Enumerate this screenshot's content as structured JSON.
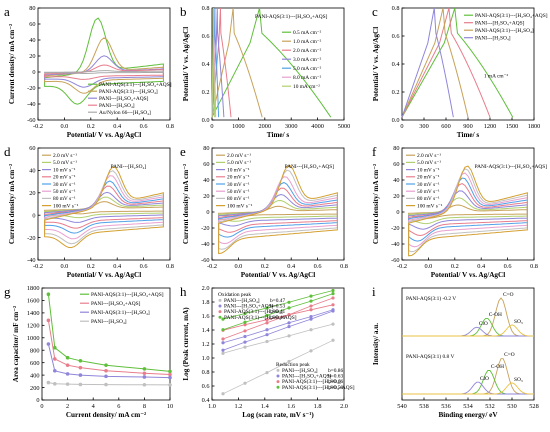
{
  "chart_data": [
    {
      "panel": "a",
      "type": "line",
      "xlabel": "Potential/ V vs. Ag/AgCl",
      "ylabel": "Current density/ mA cm⁻²",
      "xlim": [
        -0.2,
        0.8
      ],
      "ylim": [
        -60,
        80
      ],
      "xticks": [
        "-0.2",
        "0.0",
        "0.2",
        "0.4",
        "0.6",
        "0.8"
      ],
      "yticks": [
        "-60",
        "-40",
        "-20",
        "0",
        "20",
        "40",
        "60",
        "80"
      ],
      "legend_pos": "bottom-right",
      "series": [
        {
          "name": "PANI-AQS(3:1)---[H₂SO₄+AQS]",
          "color": "#5fbf3a",
          "peak_x": 0.25,
          "peak_y": 72,
          "valley_x": 0.1,
          "valley_y": -42,
          "max_a": 10,
          "min_a": -18
        },
        {
          "name": "PANI-AQS(3:1)---[H₂SO₄]",
          "color": "#c8a25a",
          "peak_x": 0.3,
          "peak_y": 45,
          "valley_x": 0.15,
          "valley_y": -28,
          "max_a": 6,
          "min_a": -12
        },
        {
          "name": "PANI---[H₂SO₄+AQS]",
          "color": "#8f86d9",
          "peak_x": 0.3,
          "peak_y": 22,
          "valley_x": 0.15,
          "valley_y": -20,
          "max_a": 4,
          "min_a": -9
        },
        {
          "name": "PANI---[H₂SO₄]",
          "color": "#e87d8c",
          "peak_x": 0.3,
          "peak_y": 10,
          "valley_x": 0.15,
          "valley_y": -10,
          "max_a": 3,
          "min_a": -6
        },
        {
          "name": "Au/Nylon 66---[H₂SO₄]",
          "color": "#aaaaaa",
          "peak_x": 0.3,
          "peak_y": 2,
          "valley_x": 0.15,
          "valley_y": -2,
          "max_a": 1,
          "min_a": -1
        }
      ]
    },
    {
      "panel": "b",
      "type": "line",
      "title": "PANI-AQS(3:1)---[H₂SO₄+AQS]",
      "xlabel": "Time/ s",
      "ylabel": "Potential/ V vs. Ag/AgCl",
      "xlim": [
        0,
        5000
      ],
      "ylim": [
        0,
        0.8
      ],
      "xticks": [
        "0",
        "1000",
        "2000",
        "3000",
        "4000",
        "5000"
      ],
      "yticks": [
        "0.0",
        "0.2",
        "0.4",
        "0.6",
        "0.8"
      ],
      "legend_pos": "right",
      "series": [
        {
          "name": "0.5 mA cm⁻²",
          "color": "#5fbf3a",
          "t_charge": 1800,
          "t_end": 4500
        },
        {
          "name": "1.0 mA cm⁻²",
          "color": "#c8a25a",
          "t_charge": 800,
          "t_end": 1900
        },
        {
          "name": "2.0 mA cm⁻²",
          "color": "#e87d8c",
          "t_charge": 320,
          "t_end": 720
        },
        {
          "name": "3.0 mA cm⁻²",
          "color": "#8f86d9",
          "t_charge": 200,
          "t_end": 450
        },
        {
          "name": "5.0 mA cm⁻²",
          "color": "#4fa0e8",
          "t_charge": 110,
          "t_end": 250
        },
        {
          "name": "8.0 mA cm⁻²",
          "color": "#e8a0d0",
          "t_charge": 60,
          "t_end": 140
        },
        {
          "name": "10 mA cm⁻²",
          "color": "#b0d070",
          "t_charge": 45,
          "t_end": 100
        }
      ]
    },
    {
      "panel": "c",
      "type": "line",
      "annotation": "1 mA cm⁻²",
      "xlabel": "Time/ s",
      "ylabel": "Potential/ V vs. Ag/AgCl",
      "xlim": [
        0,
        1800
      ],
      "ylim": [
        0,
        0.8
      ],
      "xticks": [
        "0",
        "300",
        "600",
        "900",
        "1200",
        "1500",
        "1800"
      ],
      "yticks": [
        "0.0",
        "0.2",
        "0.4",
        "0.6",
        "0.8"
      ],
      "legend_pos": "top-right",
      "series": [
        {
          "name": "PANI-AQS(3:1)---[H₂SO₄+AQS]",
          "color": "#5fbf3a",
          "t_charge": 720,
          "t_end": 1510
        },
        {
          "name": "PANI---[H₂SO₄+AQS]",
          "color": "#e87d8c",
          "t_charge": 640,
          "t_end": 1200
        },
        {
          "name": "PANI-AQS(3:1)---[H₂SO₄]",
          "color": "#c8a25a",
          "t_charge": 560,
          "t_end": 900
        },
        {
          "name": "PANI---[H₂SO₄]",
          "color": "#8f86d9",
          "t_charge": 440,
          "t_end": 700
        }
      ]
    },
    {
      "panel": "d",
      "type": "line",
      "title": "PANI---[H₂SO₄]",
      "xlabel": "Potential/ V vs. Ag/AgCl",
      "ylabel": "Current density/ mA cm⁻²",
      "xlim": [
        -0.2,
        0.8
      ],
      "ylim": [
        -50,
        60
      ],
      "xticks": [
        "-0.2",
        "0.0",
        "0.2",
        "0.4",
        "0.6",
        "0.8"
      ],
      "yticks": [
        "-40",
        "-20",
        "0",
        "20",
        "40",
        "60"
      ],
      "legend_pos": "top-left",
      "series": [
        {
          "name": "2.0 mV s⁻¹",
          "color": "#c8a25a",
          "peak_x": 0.3,
          "peak_y": 8,
          "valley_x": 0.12,
          "valley_y": -5,
          "max_a": 2,
          "min_a": -3
        },
        {
          "name": "5.0 mV s⁻¹",
          "color": "#b0d070",
          "peak_x": 0.31,
          "peak_y": 13,
          "valley_x": 0.11,
          "valley_y": -9,
          "max_a": 4,
          "min_a": -6
        },
        {
          "name": "10 mV s⁻¹",
          "color": "#8f86d9",
          "peak_x": 0.32,
          "peak_y": 18,
          "valley_x": 0.1,
          "valley_y": -14,
          "max_a": 6,
          "min_a": -9
        },
        {
          "name": "20 mV s⁻¹",
          "color": "#e87d8c",
          "peak_x": 0.33,
          "peak_y": 25,
          "valley_x": 0.09,
          "valley_y": -20,
          "max_a": 8,
          "min_a": -13
        },
        {
          "name": "30 mV s⁻¹",
          "color": "#4fa0e8",
          "peak_x": 0.34,
          "peak_y": 30,
          "valley_x": 0.08,
          "valley_y": -25,
          "max_a": 10,
          "min_a": -16
        },
        {
          "name": "50 mV s⁻¹",
          "color": "#e8a0d0",
          "peak_x": 0.35,
          "peak_y": 36,
          "valley_x": 0.07,
          "valley_y": -31,
          "max_a": 12,
          "min_a": -20
        },
        {
          "name": "80 mV s⁻¹",
          "color": "#c0c0c0",
          "peak_x": 0.36,
          "peak_y": 41,
          "valley_x": 0.06,
          "valley_y": -36,
          "max_a": 14,
          "min_a": -24
        },
        {
          "name": "100 mV s⁻¹",
          "color": "#d4a030",
          "peak_x": 0.37,
          "peak_y": 45,
          "valley_x": 0.05,
          "valley_y": -40,
          "max_a": 16,
          "min_a": -27
        }
      ]
    },
    {
      "panel": "e",
      "type": "line",
      "title": "PANI---[H₂SO₄+AQS]",
      "xlabel": "Potential/ V vs. Ag/AgCl",
      "ylabel": "Current density/ mA cm⁻²",
      "xlim": [
        -0.2,
        0.8
      ],
      "ylim": [
        -60,
        80
      ],
      "xticks": [
        "-0.2",
        "0.0",
        "0.2",
        "0.4",
        "0.6",
        "0.8"
      ],
      "yticks": [
        "-60",
        "-40",
        "-20",
        "0",
        "20",
        "40",
        "60",
        "80"
      ],
      "legend_pos": "top-left",
      "series": [
        {
          "name": "2.0 mV s⁻¹",
          "color": "#c8a25a",
          "peak_x": 0.3,
          "peak_y": 8,
          "valley_x": 0.0,
          "valley_y": -6,
          "max_a": 3,
          "min_a": -4
        },
        {
          "name": "5.0 mV s⁻¹",
          "color": "#b0d070",
          "peak_x": 0.31,
          "peak_y": 16,
          "valley_x": -0.02,
          "valley_y": -12,
          "max_a": 6,
          "min_a": -8
        },
        {
          "name": "10 mV s⁻¹",
          "color": "#8f86d9",
          "peak_x": 0.32,
          "peak_y": 24,
          "valley_x": -0.04,
          "valley_y": -18,
          "max_a": 9,
          "min_a": -12
        },
        {
          "name": "20 mV s⁻¹",
          "color": "#e87d8c",
          "peak_x": 0.33,
          "peak_y": 33,
          "valley_x": -0.06,
          "valley_y": -26,
          "max_a": 12,
          "min_a": -17
        },
        {
          "name": "30 mV s⁻¹",
          "color": "#4fa0e8",
          "peak_x": 0.34,
          "peak_y": 40,
          "valley_x": -0.08,
          "valley_y": -32,
          "max_a": 15,
          "min_a": -21
        },
        {
          "name": "50 mV s⁻¹",
          "color": "#e8a0d0",
          "peak_x": 0.35,
          "peak_y": 48,
          "valley_x": -0.1,
          "valley_y": -40,
          "max_a": 18,
          "min_a": -26
        },
        {
          "name": "80 mV s⁻¹",
          "color": "#c0c0c0",
          "peak_x": 0.37,
          "peak_y": 56,
          "valley_x": -0.12,
          "valley_y": -47,
          "max_a": 21,
          "min_a": -31
        },
        {
          "name": "100 mV s⁻¹",
          "color": "#d4a030",
          "peak_x": 0.38,
          "peak_y": 62,
          "valley_x": -0.14,
          "valley_y": -52,
          "max_a": 24,
          "min_a": -35
        }
      ]
    },
    {
      "panel": "f",
      "type": "line",
      "title": "PANI-AQS(3:1)---[H₂SO₄+AQS]",
      "xlabel": "Potential/ V vs. Ag/AgCl",
      "ylabel": "Current density/ mA cm⁻²",
      "xlim": [
        -0.2,
        0.8
      ],
      "ylim": [
        -60,
        80
      ],
      "xticks": [
        "-0.2",
        "0.0",
        "0.2",
        "0.4",
        "0.6",
        "0.8"
      ],
      "yticks": [
        "-60",
        "-40",
        "-20",
        "0",
        "20",
        "40",
        "60",
        "80"
      ],
      "legend_pos": "top-left",
      "series": [
        {
          "name": "2.0 mV s⁻¹",
          "color": "#c8a25a",
          "peak_x": 0.22,
          "peak_y": 10,
          "valley_x": 0.0,
          "valley_y": -8,
          "max_a": 3,
          "min_a": -4
        },
        {
          "name": "5.0 mV s⁻¹",
          "color": "#b0d070",
          "peak_x": 0.23,
          "peak_y": 20,
          "valley_x": -0.02,
          "valley_y": -15,
          "max_a": 6,
          "min_a": -8
        },
        {
          "name": "10 mV s⁻¹",
          "color": "#8f86d9",
          "peak_x": 0.24,
          "peak_y": 30,
          "valley_x": -0.04,
          "valley_y": -22,
          "max_a": 9,
          "min_a": -12
        },
        {
          "name": "20 mV s⁻¹",
          "color": "#e87d8c",
          "peak_x": 0.25,
          "peak_y": 40,
          "valley_x": -0.06,
          "valley_y": -30,
          "max_a": 12,
          "min_a": -17
        },
        {
          "name": "30 mV s⁻¹",
          "color": "#4fa0e8",
          "peak_x": 0.26,
          "peak_y": 48,
          "valley_x": -0.08,
          "valley_y": -37,
          "max_a": 15,
          "min_a": -21
        },
        {
          "name": "50 mV s⁻¹",
          "color": "#e8a0d0",
          "peak_x": 0.27,
          "peak_y": 55,
          "valley_x": -0.1,
          "valley_y": -44,
          "max_a": 18,
          "min_a": -26
        },
        {
          "name": "80 mV s⁻¹",
          "color": "#c0c0c0",
          "peak_x": 0.28,
          "peak_y": 61,
          "valley_x": -0.12,
          "valley_y": -50,
          "max_a": 21,
          "min_a": -31
        },
        {
          "name": "100 mV s⁻¹",
          "color": "#d4a030",
          "peak_x": 0.29,
          "peak_y": 65,
          "valley_x": -0.14,
          "valley_y": -55,
          "max_a": 24,
          "min_a": -35
        }
      ]
    },
    {
      "panel": "g",
      "type": "line",
      "xlabel": "Current density/ mA cm⁻²",
      "ylabel": "Area capacitor/ mF cm⁻²",
      "xlim": [
        0,
        10
      ],
      "ylim": [
        0,
        1800
      ],
      "xticks": [
        "0",
        "2",
        "4",
        "6",
        "8",
        "10"
      ],
      "yticks": [
        "0",
        "200",
        "400",
        "600",
        "800",
        "1000",
        "1200",
        "1400",
        "1600",
        "1800"
      ],
      "legend_pos": "top-right",
      "x": [
        0.5,
        1,
        2,
        3,
        5,
        8,
        10
      ],
      "series": [
        {
          "name": "PANI-AQS(3:1)---[H₂SO₄+AQS]",
          "color": "#5fbf3a",
          "values": [
            1700,
            840,
            680,
            630,
            560,
            500,
            460
          ]
        },
        {
          "name": "PANI---[H₂SO₄+AQS]",
          "color": "#e87d8c",
          "values": [
            1280,
            660,
            560,
            520,
            470,
            430,
            410
          ]
        },
        {
          "name": "PANI-AQS(3:1)---[H₂SO₄]",
          "color": "#8f86d9",
          "values": [
            900,
            470,
            420,
            400,
            380,
            370,
            360
          ]
        },
        {
          "name": "PANI---[H₂SO₄]",
          "color": "#c0c0c0",
          "values": [
            280,
            260,
            255,
            250,
            248,
            245,
            243
          ]
        }
      ]
    },
    {
      "panel": "h",
      "type": "scatter",
      "xlabel": "Log (scan rate, mV s⁻¹)",
      "ylabel": "Log (Peak current, mA)",
      "xlim": [
        0.9,
        2.1
      ],
      "ylim": [
        0.2,
        2.0
      ],
      "xticks": [
        "1.0",
        "1.2",
        "1.4",
        "1.6",
        "1.8",
        "2.0"
      ],
      "yticks": [
        "0.4",
        "0.6",
        "0.8",
        "1.0",
        "1.2",
        "1.4",
        "1.6",
        "1.8",
        "2.0"
      ],
      "x": [
        1.0,
        1.2,
        1.4,
        1.6,
        1.8,
        2.0
      ],
      "oxidation_legend": {
        "title": "Oxidation peak",
        "items": [
          {
            "name": "PANI---[H₂SO₄]",
            "color": "#c0c0c0",
            "slope": "b=0.47",
            "values": [
              0.95,
              1.05,
              1.14,
              1.23,
              1.33,
              1.42
            ]
          },
          {
            "name": "PANI---[H₂SO₄+AQS]",
            "color": "#8f86d9",
            "slope": "b=0.53",
            "values": [
              1.12,
              1.22,
              1.33,
              1.44,
              1.54,
              1.65
            ]
          },
          {
            "name": "PANI-AQS(3:1)---[H₂SO₄]",
            "color": "#e87d8c",
            "slope": "b=0.41",
            "values": [
              1.32,
              1.41,
              1.49,
              1.57,
              1.65,
              1.73
            ]
          },
          {
            "name": "PANI-AQS(3:1)---[H₂SO₄+AQS]",
            "color": "#5fbf3a",
            "slope": "b=0.46",
            "values": [
              1.5,
              1.59,
              1.68,
              1.77,
              1.87,
              1.96
            ]
          }
        ]
      },
      "reduction_legend": {
        "title": "Reduction peak",
        "items": [
          {
            "name": "PANI---[H₂SO₄]",
            "color": "#c0c0c0",
            "slope": "b=0.86",
            "values": [
              0.3,
              0.47,
              0.64,
              0.82,
              0.99,
              1.16
            ]
          },
          {
            "name": "PANI---[H₂SO₄+AQS]",
            "color": "#8f86d9",
            "slope": "b=0.63",
            "values": [
              1.0,
              1.13,
              1.25,
              1.38,
              1.5,
              1.63
            ]
          },
          {
            "name": "PANI-AQS(3:1)---[H₂SO₄]",
            "color": "#e87d8c",
            "slope": "b=0.66",
            "values": [
              1.18,
              1.31,
              1.44,
              1.57,
              1.71,
              1.84
            ]
          },
          {
            "name": "PANI-AQS(3:1)---[H₂SO₄+AQS]",
            "color": "#5fbf3a",
            "slope": "b=0.58",
            "values": [
              1.33,
              1.45,
              1.56,
              1.68,
              1.79,
              1.91
            ]
          }
        ]
      }
    },
    {
      "panel": "i",
      "type": "line",
      "xlabel": "Binding energy/ eV",
      "ylabel": "Intensity/ a.u.",
      "xlim": [
        540,
        528
      ],
      "reversed_x": true,
      "xticks": [
        "540",
        "538",
        "536",
        "534",
        "532",
        "530",
        "528"
      ],
      "spectra": [
        {
          "label": "PANI-AQS(3:1)  -0.2 V",
          "peaks": [
            {
              "name": "C=O",
              "center": 531.0,
              "height": 0.95,
              "color": "#c8a25a"
            },
            {
              "name": "C-OH",
              "center": 532.3,
              "height": 0.45,
              "color": "#5fbf3a"
            },
            {
              "name": "ClO",
              "center": 533.2,
              "height": 0.22,
              "color": "#8f86d9"
            },
            {
              "name": "SO₃",
              "center": 530.0,
              "height": 0.28,
              "color": "#e8c040"
            }
          ]
        },
        {
          "label": "PANI-AQS(3:1)  0.8 V",
          "peaks": [
            {
              "name": "C=O",
              "center": 530.9,
              "height": 0.9,
              "color": "#c8a25a"
            },
            {
              "name": "C-OH",
              "center": 532.1,
              "height": 0.6,
              "color": "#5fbf3a"
            },
            {
              "name": "ClO",
              "center": 533.1,
              "height": 0.3,
              "color": "#8f86d9"
            },
            {
              "name": "SO₃",
              "center": 530.0,
              "height": 0.28,
              "color": "#e8c040"
            }
          ]
        }
      ]
    }
  ],
  "panel_letters": [
    "a",
    "b",
    "c",
    "d",
    "e",
    "f",
    "g",
    "h",
    "i"
  ]
}
